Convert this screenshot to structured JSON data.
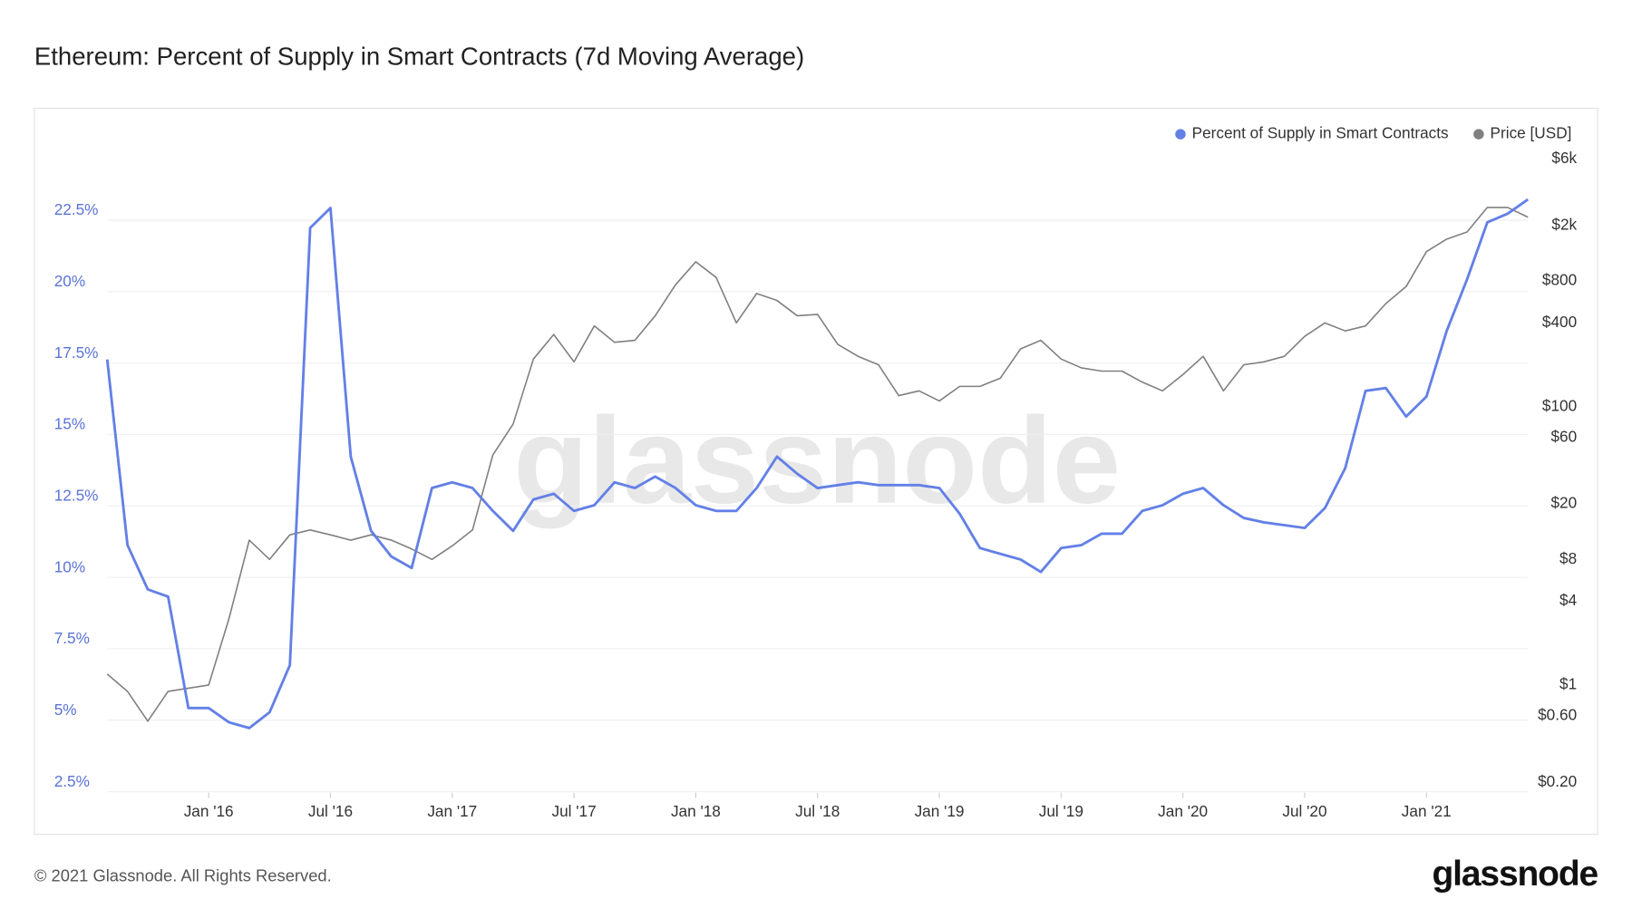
{
  "chart_data": {
    "type": "line",
    "title": "Ethereum: Percent of Supply in Smart Contracts (7d Moving Average)",
    "watermark": "glassnode",
    "footer": "© 2021 Glassnode. All Rights Reserved.",
    "brand": "glassnode",
    "legend": "top-right",
    "grid": true,
    "y2scale": "log",
    "x": [
      "2015-08",
      "2015-09",
      "2015-10",
      "2015-11",
      "2015-12",
      "2016-01",
      "2016-02",
      "2016-03",
      "2016-04",
      "2016-05",
      "2016-06",
      "2016-07",
      "2016-08",
      "2016-09",
      "2016-10",
      "2016-11",
      "2016-12",
      "2017-01",
      "2017-02",
      "2017-03",
      "2017-04",
      "2017-05",
      "2017-06",
      "2017-07",
      "2017-08",
      "2017-09",
      "2017-10",
      "2017-11",
      "2017-12",
      "2018-01",
      "2018-02",
      "2018-03",
      "2018-04",
      "2018-05",
      "2018-06",
      "2018-07",
      "2018-08",
      "2018-09",
      "2018-10",
      "2018-11",
      "2018-12",
      "2019-01",
      "2019-02",
      "2019-03",
      "2019-04",
      "2019-05",
      "2019-06",
      "2019-07",
      "2019-08",
      "2019-09",
      "2019-10",
      "2019-11",
      "2019-12",
      "2020-01",
      "2020-02",
      "2020-03",
      "2020-04",
      "2020-05",
      "2020-06",
      "2020-07",
      "2020-08",
      "2020-09",
      "2020-10",
      "2020-11",
      "2020-12",
      "2021-01",
      "2021-02",
      "2021-03",
      "2021-04",
      "2021-05",
      "2021-06"
    ],
    "xlim": [
      "2015-08",
      "2021-06"
    ],
    "xticks": [
      {
        "value": "2016-01",
        "label": "Jan '16"
      },
      {
        "value": "2016-07",
        "label": "Jul '16"
      },
      {
        "value": "2017-01",
        "label": "Jan '17"
      },
      {
        "value": "2017-07",
        "label": "Jul '17"
      },
      {
        "value": "2018-01",
        "label": "Jan '18"
      },
      {
        "value": "2018-07",
        "label": "Jul '18"
      },
      {
        "value": "2019-01",
        "label": "Jan '19"
      },
      {
        "value": "2019-07",
        "label": "Jul '19"
      },
      {
        "value": "2020-01",
        "label": "Jan '20"
      },
      {
        "value": "2020-07",
        "label": "Jul '20"
      },
      {
        "value": "2021-01",
        "label": "Jan '21"
      }
    ],
    "ylim": [
      2.5,
      25
    ],
    "yticks": [
      {
        "value": 2.5,
        "label": "2.5%"
      },
      {
        "value": 5,
        "label": "5%"
      },
      {
        "value": 7.5,
        "label": "7.5%"
      },
      {
        "value": 10,
        "label": "10%"
      },
      {
        "value": 12.5,
        "label": "12.5%"
      },
      {
        "value": 15,
        "label": "15%"
      },
      {
        "value": 17.5,
        "label": "17.5%"
      },
      {
        "value": 20,
        "label": "20%"
      },
      {
        "value": 22.5,
        "label": "22.5%"
      }
    ],
    "y2lim": [
      0.2,
      6000
    ],
    "y2ticks": [
      {
        "value": 0.2,
        "label": "$0.20"
      },
      {
        "value": 0.6,
        "label": "$0.60"
      },
      {
        "value": 1,
        "label": "$1"
      },
      {
        "value": 4,
        "label": "$4"
      },
      {
        "value": 8,
        "label": "$8"
      },
      {
        "value": 20,
        "label": "$20"
      },
      {
        "value": 60,
        "label": "$60"
      },
      {
        "value": 100,
        "label": "$100"
      },
      {
        "value": 400,
        "label": "$400"
      },
      {
        "value": 800,
        "label": "$800"
      },
      {
        "value": 2000,
        "label": "$2k"
      },
      {
        "value": 6000,
        "label": "$6k"
      }
    ],
    "series": [
      {
        "name": "Percent of Supply in Smart Contracts",
        "color": "#6380e6",
        "values": [
          17.3,
          10.8,
          9.25,
          9.0,
          5.1,
          5.1,
          4.6,
          4.4,
          4.95,
          6.6,
          21.9,
          22.6,
          13.9,
          11.3,
          10.4,
          10.0,
          12.8,
          13.0,
          12.8,
          12.0,
          11.3,
          12.4,
          12.6,
          12.0,
          12.2,
          13.0,
          12.8,
          13.2,
          12.8,
          12.2,
          12.0,
          12.0,
          12.8,
          13.9,
          13.3,
          12.8,
          12.9,
          13.0,
          12.9,
          12.9,
          12.9,
          12.8,
          11.9,
          10.7,
          10.5,
          10.3,
          9.86,
          10.7,
          10.8,
          11.2,
          11.2,
          12.0,
          12.2,
          12.6,
          12.8,
          12.2,
          11.75,
          11.6,
          11.5,
          11.4,
          12.1,
          13.5,
          16.2,
          16.3,
          15.3,
          16.0,
          18.3,
          20.1,
          22.1,
          22.4,
          22.9
        ]
      },
      {
        "name": "Price [USD]",
        "color": "#808080",
        "axis": "y2",
        "values": [
          1.2,
          0.9,
          0.55,
          0.9,
          0.95,
          1.0,
          3.0,
          11,
          8,
          12,
          13,
          12,
          11,
          12,
          11,
          9.5,
          8,
          10,
          13,
          45,
          75,
          220,
          330,
          210,
          380,
          290,
          300,
          450,
          750,
          1100,
          850,
          400,
          650,
          580,
          450,
          460,
          280,
          230,
          200,
          120,
          130,
          110,
          140,
          140,
          160,
          260,
          300,
          220,
          190,
          180,
          180,
          150,
          130,
          170,
          230,
          130,
          200,
          210,
          230,
          320,
          400,
          350,
          380,
          550,
          730,
          1300,
          1600,
          1800,
          2700,
          2700,
          2300
        ]
      }
    ]
  }
}
